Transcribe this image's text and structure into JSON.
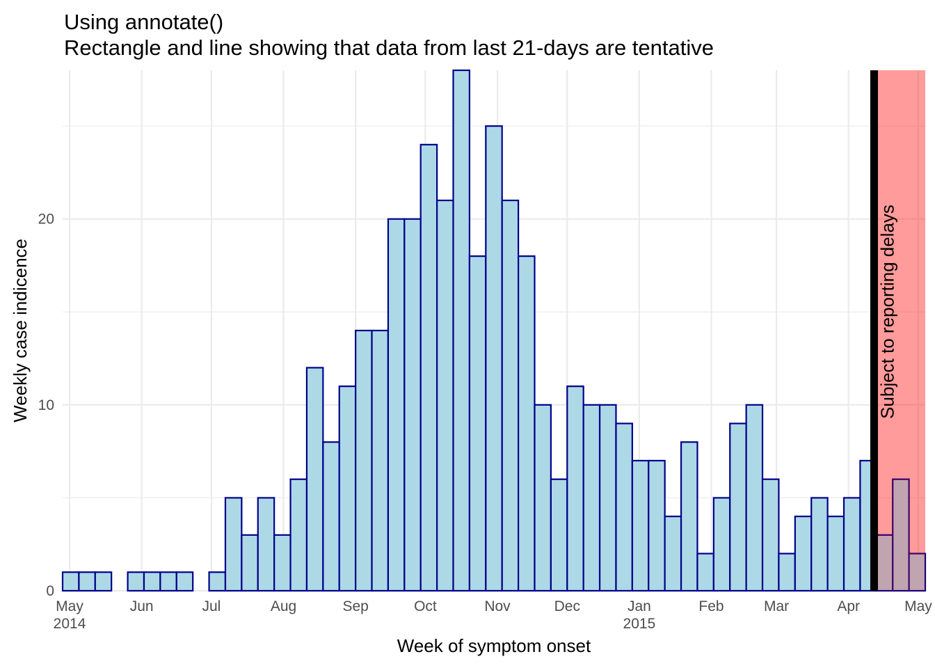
{
  "chart_data": {
    "type": "bar",
    "title": "Using annotate()",
    "subtitle": "Rectangle and line showing that data from last 21-days are tentative",
    "xlabel": "Week of symptom onset",
    "ylabel": "Weekly case indicence",
    "x_start_date": "2014-04-28",
    "bin_width_days": 7,
    "values": [
      1,
      1,
      1,
      0,
      1,
      1,
      1,
      1,
      0,
      1,
      5,
      3,
      5,
      3,
      6,
      12,
      8,
      11,
      14,
      14,
      20,
      20,
      24,
      21,
      28,
      18,
      25,
      21,
      18,
      10,
      6,
      11,
      10,
      10,
      9,
      7,
      7,
      4,
      8,
      2,
      5,
      9,
      10,
      6,
      2,
      4,
      5,
      4,
      5,
      7,
      3,
      6,
      2
    ],
    "xlim": [
      "2014-04-28",
      "2015-05-04"
    ],
    "ylim": [
      0,
      28
    ],
    "y_ticks": [
      0,
      10,
      20
    ],
    "x_ticks": [
      {
        "date": "2014-05-01",
        "label": "May",
        "sublabel": "2014"
      },
      {
        "date": "2014-06-01",
        "label": "Jun",
        "sublabel": ""
      },
      {
        "date": "2014-07-01",
        "label": "Jul",
        "sublabel": ""
      },
      {
        "date": "2014-08-01",
        "label": "Aug",
        "sublabel": ""
      },
      {
        "date": "2014-09-01",
        "label": "Sep",
        "sublabel": ""
      },
      {
        "date": "2014-10-01",
        "label": "Oct",
        "sublabel": ""
      },
      {
        "date": "2014-11-01",
        "label": "Nov",
        "sublabel": ""
      },
      {
        "date": "2014-12-01",
        "label": "Dec",
        "sublabel": ""
      },
      {
        "date": "2015-01-01",
        "label": "Jan",
        "sublabel": "2015"
      },
      {
        "date": "2015-02-01",
        "label": "Feb",
        "sublabel": ""
      },
      {
        "date": "2015-03-01",
        "label": "Mar",
        "sublabel": ""
      },
      {
        "date": "2015-04-01",
        "label": "Apr",
        "sublabel": ""
      },
      {
        "date": "2015-05-01",
        "label": "May",
        "sublabel": ""
      }
    ],
    "grid": true,
    "annotation": {
      "rect_start_date": "2015-04-12",
      "line_date": "2015-04-12",
      "text": "Subject to reporting delays",
      "rect_color": "#ff0000",
      "rect_opacity": 0.2,
      "line_color": "#000000"
    },
    "bar_fill": "#add8e6",
    "bar_outline": "#00008b"
  }
}
